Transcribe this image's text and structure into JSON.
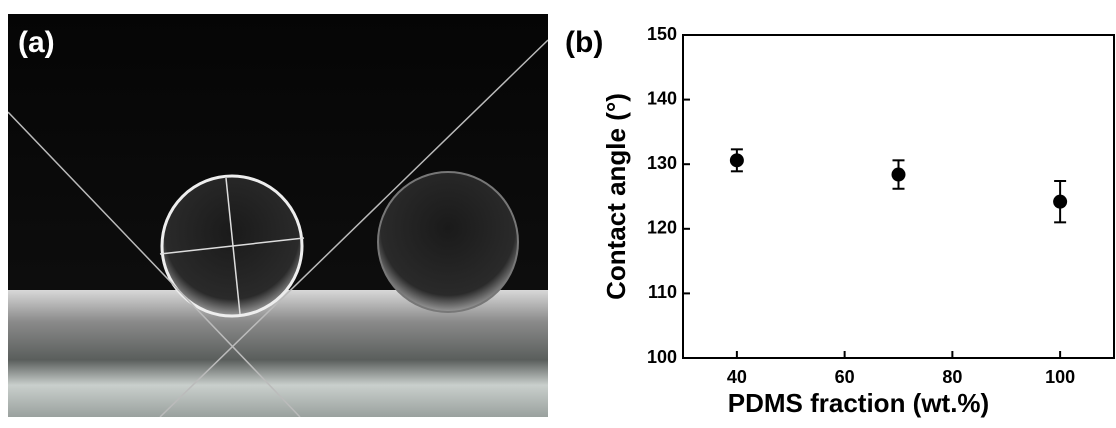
{
  "panel_a": {
    "label": "(a)"
  },
  "chart_data": {
    "type": "scatter",
    "panel_label": "(b)",
    "x_label": "PDMS fraction (wt.%)",
    "y_label": "Contact angle (°)",
    "x": [
      40,
      70,
      100
    ],
    "values": [
      130.6,
      128.4,
      124.2
    ],
    "errors": [
      1.7,
      2.2,
      3.2
    ],
    "color": "#000000",
    "xlim": [
      30,
      110
    ],
    "xticks": [
      40,
      60,
      80,
      100
    ],
    "ylim": [
      100,
      150
    ],
    "yticks": [
      100,
      110,
      120,
      130,
      140,
      150
    ]
  }
}
